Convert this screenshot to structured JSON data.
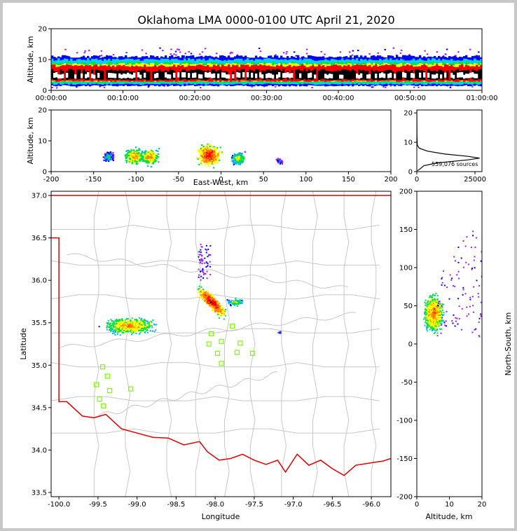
{
  "title": "Oklahoma LMA 0000-0100 UTC April 21, 2020",
  "colors": {
    "border_state": "#e00000",
    "county_lines": "#c8c8c8",
    "station_markers": "#7cfc00",
    "axes": "#000000"
  },
  "chart_data": [
    {
      "id": "time_height",
      "type": "heatmap",
      "ylabel": "Altitude, km",
      "xlabel": "",
      "xlim": [
        "00:00:00",
        "01:00:00"
      ],
      "ylim": [
        0,
        20
      ],
      "xticks": [
        "00:00:00",
        "00:10:00",
        "00:20:00",
        "00:30:00",
        "00:40:00",
        "00:50:00",
        "01:00:00"
      ],
      "yticks": [
        "0",
        "10",
        "20"
      ],
      "density_layers": [
        {
          "color": "#0000ff",
          "alt_range_km": [
            1.5,
            11
          ]
        },
        {
          "color": "#00d0ff",
          "alt_range_km": [
            2,
            10
          ]
        },
        {
          "color": "#00e040",
          "alt_range_km": [
            2.5,
            9
          ]
        },
        {
          "color": "#ffff00",
          "alt_range_km": [
            3,
            8.5
          ]
        },
        {
          "color": "#ff0000",
          "alt_range_km": [
            3,
            8
          ]
        },
        {
          "color": "#000000",
          "alt_range_km": [
            3.5,
            6.5
          ]
        },
        {
          "color": "#ffffff",
          "alt_range_km": [
            4,
            5.5
          ]
        }
      ]
    },
    {
      "id": "ew_altitude",
      "type": "heatmap",
      "xlabel": "East-West, km",
      "ylabel": "Altitude, km",
      "xlim": [
        -200,
        200
      ],
      "ylim": [
        0,
        20
      ],
      "xticks": [
        "-200",
        "-150",
        "-100",
        "-50",
        "0",
        "50",
        "100",
        "150",
        "200"
      ],
      "yticks": [
        "0",
        "10",
        "20"
      ],
      "cells": [
        {
          "x_km": -133,
          "alt_km": 5,
          "intensity": 2
        },
        {
          "x_km": -103,
          "alt_km": 5,
          "intensity": 4
        },
        {
          "x_km": -84,
          "alt_km": 5,
          "intensity": 4
        },
        {
          "x_km": -15,
          "alt_km": 5.5,
          "intensity": 5
        },
        {
          "x_km": 20,
          "alt_km": 4.5,
          "intensity": 3
        },
        {
          "x_km": 68,
          "alt_km": 3.5,
          "intensity": 1
        }
      ]
    },
    {
      "id": "altitude_histogram",
      "type": "line",
      "xlim": [
        0,
        28000
      ],
      "ylim": [
        0,
        21
      ],
      "xticks": [
        "0",
        "25000"
      ],
      "yticks": [
        "0",
        "10",
        "20"
      ],
      "annotation": "559,076 sources",
      "profile": [
        {
          "alt_km": 0.3,
          "count": 300
        },
        {
          "alt_km": 1,
          "count": 1500
        },
        {
          "alt_km": 2,
          "count": 3000
        },
        {
          "alt_km": 3,
          "count": 9000
        },
        {
          "alt_km": 4,
          "count": 22000
        },
        {
          "alt_km": 4.6,
          "count": 27000
        },
        {
          "alt_km": 5.2,
          "count": 22000
        },
        {
          "alt_km": 6,
          "count": 12000
        },
        {
          "alt_km": 7,
          "count": 4500
        },
        {
          "alt_km": 8,
          "count": 1000
        },
        {
          "alt_km": 9,
          "count": 200
        },
        {
          "alt_km": 12,
          "count": 50
        },
        {
          "alt_km": 21,
          "count": 0
        }
      ]
    },
    {
      "id": "plan_view_map",
      "type": "scatter",
      "xlabel": "Longitude",
      "ylabel": "Latitude",
      "xlim": [
        -100.1,
        -95.75
      ],
      "ylim": [
        33.45,
        37.05
      ],
      "xticks": [
        "-100.0",
        "-99.5",
        "-99.0",
        "-98.5",
        "-98.0",
        "-97.5",
        "-97.0",
        "-96.5",
        "-96.0"
      ],
      "yticks": [
        "33.5",
        "34.0",
        "34.5",
        "35.0",
        "35.5",
        "36.0",
        "36.5",
        "37.0"
      ],
      "stations": [
        {
          "lon": -99.44,
          "lat": 34.98
        },
        {
          "lon": -99.38,
          "lat": 34.87
        },
        {
          "lon": -99.52,
          "lat": 34.77
        },
        {
          "lon": -99.35,
          "lat": 34.7
        },
        {
          "lon": -99.48,
          "lat": 34.6
        },
        {
          "lon": -99.43,
          "lat": 34.52
        },
        {
          "lon": -99.08,
          "lat": 34.72
        },
        {
          "lon": -98.05,
          "lat": 35.37
        },
        {
          "lon": -98.08,
          "lat": 35.25
        },
        {
          "lon": -97.92,
          "lat": 35.28
        },
        {
          "lon": -97.97,
          "lat": 35.14
        },
        {
          "lon": -97.92,
          "lat": 35.02
        },
        {
          "lon": -97.78,
          "lat": 35.46
        },
        {
          "lon": -97.68,
          "lat": 35.26
        },
        {
          "lon": -97.72,
          "lat": 35.15
        },
        {
          "lon": -97.52,
          "lat": 35.14
        }
      ],
      "storms": [
        {
          "lon": -99.1,
          "lat": 35.47,
          "size": "medium"
        },
        {
          "lon": -98.05,
          "lat": 35.75,
          "size": "large"
        },
        {
          "lon": -97.75,
          "lat": 35.75,
          "size": "small"
        },
        {
          "lon": -97.18,
          "lat": 35.39,
          "size": "tiny"
        }
      ]
    },
    {
      "id": "ns_altitude",
      "type": "heatmap",
      "xlabel": "Altitude, km",
      "ylabel": "North-South, km",
      "xlim": [
        0,
        20
      ],
      "ylim": [
        -200,
        200
      ],
      "xticks": [
        "0",
        "10",
        "20"
      ],
      "yticks": [
        "-200",
        "-150",
        "-100",
        "-50",
        "0",
        "50",
        "100",
        "150",
        "200"
      ]
    }
  ]
}
